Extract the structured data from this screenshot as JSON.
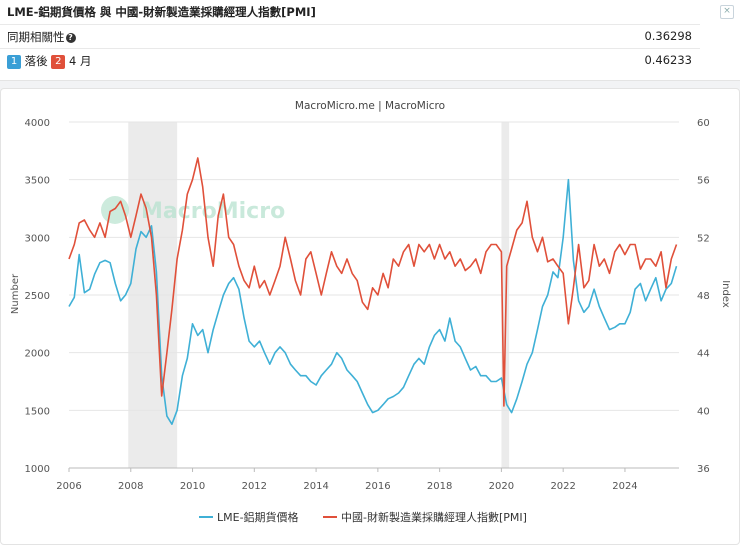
{
  "panel": {
    "title": "LME-鋁期貨價格 與 中國-財新製造業採購經理人指數[PMI]",
    "close_symbol": "×"
  },
  "stats": {
    "correlation_label": "同期相關性",
    "correlation_value": "0.36298",
    "lag_badge1": "1",
    "lag_text1": "落後",
    "lag_badge2": "2",
    "lag_text2": "4 月",
    "lag_value": "0.46233"
  },
  "colors": {
    "aluminum": "#3fb0d6",
    "pmi": "#e0503a",
    "recession": "#e3e3e3"
  },
  "chart_data": {
    "type": "line",
    "title": "MacroMicro.me | MacroMicro",
    "watermark": "MacroMicro",
    "xlabel": "",
    "ylabel": "Number",
    "y2label": "Index",
    "x_ticks": [
      "2006",
      "2008",
      "2010",
      "2012",
      "2014",
      "2016",
      "2018",
      "2020",
      "2022",
      "2024"
    ],
    "x_range": [
      2006,
      2025.75
    ],
    "ylim": [
      1000,
      4000
    ],
    "y_ticks": [
      "1000",
      "1500",
      "2000",
      "2500",
      "3000",
      "3500",
      "4000"
    ],
    "y2lim": [
      36,
      60
    ],
    "y2_ticks": [
      "36",
      "40",
      "44",
      "48",
      "52",
      "56",
      "60"
    ],
    "recession_bands": [
      [
        2007.92,
        2009.5
      ],
      [
        2020.0,
        2020.25
      ]
    ],
    "series": [
      {
        "name": "LME-鋁期貨價格",
        "axis": "left",
        "points": [
          [
            2006.0,
            2400
          ],
          [
            2006.17,
            2480
          ],
          [
            2006.33,
            2850
          ],
          [
            2006.5,
            2520
          ],
          [
            2006.67,
            2550
          ],
          [
            2006.83,
            2680
          ],
          [
            2007.0,
            2780
          ],
          [
            2007.17,
            2800
          ],
          [
            2007.33,
            2780
          ],
          [
            2007.5,
            2600
          ],
          [
            2007.67,
            2450
          ],
          [
            2007.83,
            2500
          ],
          [
            2008.0,
            2600
          ],
          [
            2008.17,
            2900
          ],
          [
            2008.33,
            3050
          ],
          [
            2008.5,
            3000
          ],
          [
            2008.67,
            3100
          ],
          [
            2008.83,
            2700
          ],
          [
            2009.0,
            1800
          ],
          [
            2009.17,
            1450
          ],
          [
            2009.33,
            1380
          ],
          [
            2009.5,
            1500
          ],
          [
            2009.67,
            1800
          ],
          [
            2009.83,
            1950
          ],
          [
            2010.0,
            2250
          ],
          [
            2010.17,
            2150
          ],
          [
            2010.33,
            2200
          ],
          [
            2010.5,
            2000
          ],
          [
            2010.67,
            2200
          ],
          [
            2010.83,
            2350
          ],
          [
            2011.0,
            2500
          ],
          [
            2011.17,
            2600
          ],
          [
            2011.33,
            2650
          ],
          [
            2011.5,
            2550
          ],
          [
            2011.67,
            2300
          ],
          [
            2011.83,
            2100
          ],
          [
            2012.0,
            2050
          ],
          [
            2012.17,
            2100
          ],
          [
            2012.33,
            2000
          ],
          [
            2012.5,
            1900
          ],
          [
            2012.67,
            2000
          ],
          [
            2012.83,
            2050
          ],
          [
            2013.0,
            2000
          ],
          [
            2013.17,
            1900
          ],
          [
            2013.33,
            1850
          ],
          [
            2013.5,
            1800
          ],
          [
            2013.67,
            1800
          ],
          [
            2013.83,
            1750
          ],
          [
            2014.0,
            1720
          ],
          [
            2014.17,
            1800
          ],
          [
            2014.33,
            1850
          ],
          [
            2014.5,
            1900
          ],
          [
            2014.67,
            2000
          ],
          [
            2014.83,
            1950
          ],
          [
            2015.0,
            1850
          ],
          [
            2015.17,
            1800
          ],
          [
            2015.33,
            1750
          ],
          [
            2015.5,
            1650
          ],
          [
            2015.67,
            1550
          ],
          [
            2015.83,
            1480
          ],
          [
            2016.0,
            1500
          ],
          [
            2016.17,
            1550
          ],
          [
            2016.33,
            1600
          ],
          [
            2016.5,
            1620
          ],
          [
            2016.67,
            1650
          ],
          [
            2016.83,
            1700
          ],
          [
            2017.0,
            1800
          ],
          [
            2017.17,
            1900
          ],
          [
            2017.33,
            1950
          ],
          [
            2017.5,
            1900
          ],
          [
            2017.67,
            2050
          ],
          [
            2017.83,
            2150
          ],
          [
            2018.0,
            2200
          ],
          [
            2018.17,
            2100
          ],
          [
            2018.33,
            2300
          ],
          [
            2018.5,
            2100
          ],
          [
            2018.67,
            2050
          ],
          [
            2018.83,
            1950
          ],
          [
            2019.0,
            1850
          ],
          [
            2019.17,
            1880
          ],
          [
            2019.33,
            1800
          ],
          [
            2019.5,
            1800
          ],
          [
            2019.67,
            1750
          ],
          [
            2019.83,
            1750
          ],
          [
            2020.0,
            1780
          ],
          [
            2020.17,
            1550
          ],
          [
            2020.33,
            1480
          ],
          [
            2020.5,
            1600
          ],
          [
            2020.67,
            1750
          ],
          [
            2020.83,
            1900
          ],
          [
            2021.0,
            2000
          ],
          [
            2021.17,
            2200
          ],
          [
            2021.33,
            2400
          ],
          [
            2021.5,
            2500
          ],
          [
            2021.67,
            2700
          ],
          [
            2021.83,
            2650
          ],
          [
            2022.0,
            3000
          ],
          [
            2022.17,
            3500
          ],
          [
            2022.33,
            2800
          ],
          [
            2022.5,
            2450
          ],
          [
            2022.67,
            2350
          ],
          [
            2022.83,
            2400
          ],
          [
            2023.0,
            2550
          ],
          [
            2023.17,
            2400
          ],
          [
            2023.33,
            2300
          ],
          [
            2023.5,
            2200
          ],
          [
            2023.67,
            2220
          ],
          [
            2023.83,
            2250
          ],
          [
            2024.0,
            2250
          ],
          [
            2024.17,
            2350
          ],
          [
            2024.33,
            2550
          ],
          [
            2024.5,
            2600
          ],
          [
            2024.67,
            2450
          ],
          [
            2024.83,
            2550
          ],
          [
            2025.0,
            2650
          ],
          [
            2025.17,
            2450
          ],
          [
            2025.33,
            2550
          ],
          [
            2025.5,
            2600
          ],
          [
            2025.67,
            2750
          ]
        ]
      },
      {
        "name": "中國-財新製造業採購經理人指數[PMI]",
        "axis": "right",
        "points": [
          [
            2006.0,
            50.5
          ],
          [
            2006.17,
            51.5
          ],
          [
            2006.33,
            53.0
          ],
          [
            2006.5,
            53.2
          ],
          [
            2006.67,
            52.5
          ],
          [
            2006.83,
            52.0
          ],
          [
            2007.0,
            53.0
          ],
          [
            2007.17,
            52.0
          ],
          [
            2007.33,
            53.8
          ],
          [
            2007.5,
            54.0
          ],
          [
            2007.67,
            54.5
          ],
          [
            2007.83,
            53.5
          ],
          [
            2008.0,
            52.0
          ],
          [
            2008.17,
            53.5
          ],
          [
            2008.33,
            55.0
          ],
          [
            2008.5,
            54.0
          ],
          [
            2008.67,
            52.0
          ],
          [
            2008.83,
            48.0
          ],
          [
            2009.0,
            41.0
          ],
          [
            2009.17,
            44.0
          ],
          [
            2009.33,
            47.0
          ],
          [
            2009.5,
            50.5
          ],
          [
            2009.67,
            52.5
          ],
          [
            2009.83,
            55.0
          ],
          [
            2010.0,
            56.0
          ],
          [
            2010.17,
            57.5
          ],
          [
            2010.33,
            55.5
          ],
          [
            2010.5,
            52.0
          ],
          [
            2010.67,
            50.0
          ],
          [
            2010.83,
            53.5
          ],
          [
            2011.0,
            55.0
          ],
          [
            2011.17,
            52.0
          ],
          [
            2011.33,
            51.5
          ],
          [
            2011.5,
            50.0
          ],
          [
            2011.67,
            49.0
          ],
          [
            2011.83,
            48.5
          ],
          [
            2012.0,
            50.0
          ],
          [
            2012.17,
            48.5
          ],
          [
            2012.33,
            49.0
          ],
          [
            2012.5,
            48.0
          ],
          [
            2012.67,
            49.0
          ],
          [
            2012.83,
            50.0
          ],
          [
            2013.0,
            52.0
          ],
          [
            2013.17,
            50.5
          ],
          [
            2013.33,
            49.0
          ],
          [
            2013.5,
            48.0
          ],
          [
            2013.67,
            50.5
          ],
          [
            2013.83,
            51.0
          ],
          [
            2014.0,
            49.5
          ],
          [
            2014.17,
            48.0
          ],
          [
            2014.33,
            49.5
          ],
          [
            2014.5,
            51.0
          ],
          [
            2014.67,
            50.0
          ],
          [
            2014.83,
            49.5
          ],
          [
            2015.0,
            50.5
          ],
          [
            2015.17,
            49.5
          ],
          [
            2015.33,
            49.0
          ],
          [
            2015.5,
            47.5
          ],
          [
            2015.67,
            47.0
          ],
          [
            2015.83,
            48.5
          ],
          [
            2016.0,
            48.0
          ],
          [
            2016.17,
            49.5
          ],
          [
            2016.33,
            48.5
          ],
          [
            2016.5,
            50.5
          ],
          [
            2016.67,
            50.0
          ],
          [
            2016.83,
            51.0
          ],
          [
            2017.0,
            51.5
          ],
          [
            2017.17,
            50.0
          ],
          [
            2017.33,
            51.5
          ],
          [
            2017.5,
            51.0
          ],
          [
            2017.67,
            51.5
          ],
          [
            2017.83,
            50.5
          ],
          [
            2018.0,
            51.5
          ],
          [
            2018.17,
            50.5
          ],
          [
            2018.33,
            51.0
          ],
          [
            2018.5,
            50.0
          ],
          [
            2018.67,
            50.5
          ],
          [
            2018.83,
            49.7
          ],
          [
            2019.0,
            50.0
          ],
          [
            2019.17,
            50.5
          ],
          [
            2019.33,
            49.5
          ],
          [
            2019.5,
            51.0
          ],
          [
            2019.67,
            51.5
          ],
          [
            2019.83,
            51.5
          ],
          [
            2020.0,
            51.0
          ],
          [
            2020.08,
            40.3
          ],
          [
            2020.17,
            50.0
          ],
          [
            2020.33,
            51.2
          ],
          [
            2020.5,
            52.5
          ],
          [
            2020.67,
            53.0
          ],
          [
            2020.83,
            54.5
          ],
          [
            2021.0,
            52.0
          ],
          [
            2021.17,
            51.0
          ],
          [
            2021.33,
            52.0
          ],
          [
            2021.5,
            50.3
          ],
          [
            2021.67,
            50.5
          ],
          [
            2021.83,
            50.0
          ],
          [
            2022.0,
            49.5
          ],
          [
            2022.17,
            46.0
          ],
          [
            2022.33,
            48.5
          ],
          [
            2022.5,
            51.5
          ],
          [
            2022.67,
            48.5
          ],
          [
            2022.83,
            49.0
          ],
          [
            2023.0,
            51.5
          ],
          [
            2023.17,
            50.0
          ],
          [
            2023.33,
            50.5
          ],
          [
            2023.5,
            49.5
          ],
          [
            2023.67,
            51.0
          ],
          [
            2023.83,
            51.5
          ],
          [
            2024.0,
            50.8
          ],
          [
            2024.17,
            51.5
          ],
          [
            2024.33,
            51.5
          ],
          [
            2024.5,
            49.8
          ],
          [
            2024.67,
            50.5
          ],
          [
            2024.83,
            50.5
          ],
          [
            2025.0,
            50.0
          ],
          [
            2025.17,
            51.0
          ],
          [
            2025.33,
            48.5
          ],
          [
            2025.5,
            50.5
          ],
          [
            2025.67,
            51.5
          ]
        ]
      }
    ],
    "legend": [
      "LME-鋁期貨價格",
      "中國-財新製造業採購經理人指數[PMI]"
    ],
    "legend_position": "bottom-center"
  }
}
